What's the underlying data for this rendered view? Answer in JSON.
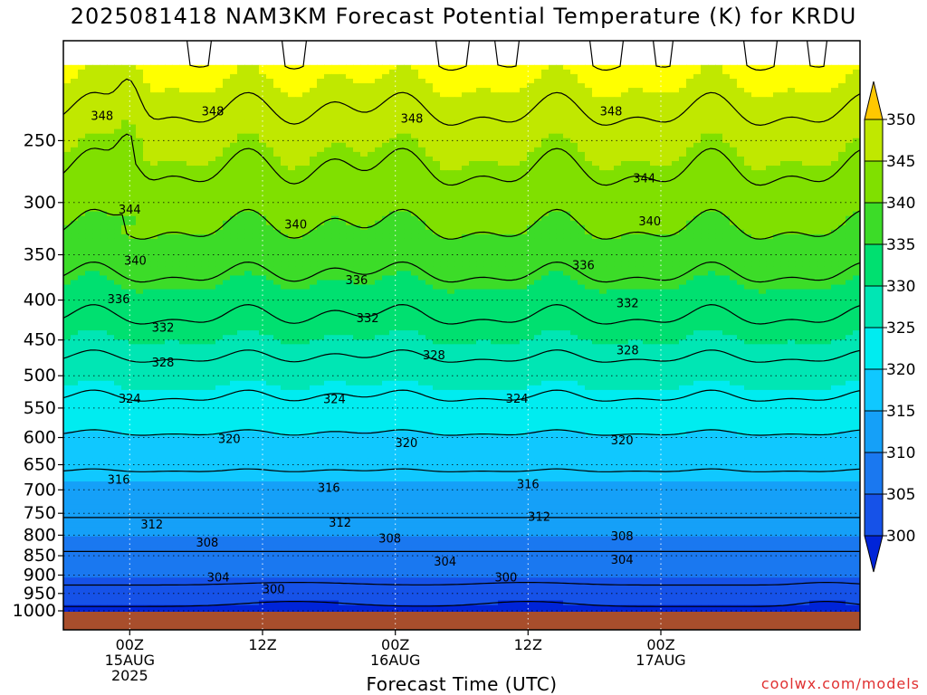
{
  "title": "2025081418 NAM3KM Forecast Potential Temperature (K) for KRDU",
  "credit": "coolwx.com/models",
  "chart_data": {
    "type": "heatmap",
    "title": "2025081418 NAM3KM Forecast Potential Temperature (K) for KRDU",
    "xlabel": "Forecast Time (UTC)",
    "ylabel": "",
    "y_axis": {
      "scale": "log",
      "reversed": true,
      "ylim": [
        1000,
        200
      ],
      "ticks": [
        250,
        300,
        350,
        400,
        450,
        500,
        550,
        600,
        650,
        700,
        750,
        800,
        850,
        900,
        950,
        1000
      ]
    },
    "x_axis": {
      "xlim": [
        -6,
        66
      ],
      "ticks": [
        {
          "value": 0,
          "label": [
            "00Z",
            "15AUG",
            "2025"
          ]
        },
        {
          "value": 12,
          "label": [
            "12Z"
          ]
        },
        {
          "value": 24,
          "label": [
            "00Z",
            "16AUG"
          ]
        },
        {
          "value": 36,
          "label": [
            "12Z"
          ]
        },
        {
          "value": 48,
          "label": [
            "00Z",
            "17AUG"
          ]
        }
      ]
    },
    "colorbar": {
      "levels": [
        300,
        305,
        310,
        315,
        320,
        325,
        330,
        335,
        340,
        345,
        350
      ],
      "tick_labels": [
        "300",
        "305",
        "310",
        "315",
        "320",
        "325",
        "330",
        "335",
        "340",
        "345",
        "350"
      ],
      "colors": [
        "#0024d8",
        "#1652e8",
        "#1a78f0",
        "#15a0f8",
        "#10c8ff",
        "#00ecf0",
        "#00e6b4",
        "#00e070",
        "#3cdc28",
        "#80e000",
        "#c0e800",
        "#ffff00",
        "#ffc800"
      ],
      "extend": "both"
    },
    "contour_labels": [
      {
        "value": 348,
        "text": "348",
        "x": -2.5,
        "p": 233
      },
      {
        "value": 348,
        "text": "348",
        "x": 7.5,
        "p": 230
      },
      {
        "value": 348,
        "text": "348",
        "x": 25.5,
        "p": 235
      },
      {
        "value": 348,
        "text": "348",
        "x": 43.5,
        "p": 230
      },
      {
        "value": 344,
        "text": "344",
        "x": 0,
        "p": 307
      },
      {
        "value": 344,
        "text": "344",
        "x": 46.5,
        "p": 280
      },
      {
        "value": 340,
        "text": "340",
        "x": 0.5,
        "p": 357
      },
      {
        "value": 340,
        "text": "340",
        "x": 15,
        "p": 321
      },
      {
        "value": 340,
        "text": "340",
        "x": 47,
        "p": 318
      },
      {
        "value": 336,
        "text": "336",
        "x": -1,
        "p": 400
      },
      {
        "value": 336,
        "text": "336",
        "x": 20.5,
        "p": 378
      },
      {
        "value": 336,
        "text": "336",
        "x": 41,
        "p": 362
      },
      {
        "value": 332,
        "text": "332",
        "x": 3,
        "p": 435
      },
      {
        "value": 332,
        "text": "332",
        "x": 21.5,
        "p": 423
      },
      {
        "value": 332,
        "text": "332",
        "x": 45,
        "p": 405
      },
      {
        "value": 328,
        "text": "328",
        "x": 3,
        "p": 482
      },
      {
        "value": 328,
        "text": "328",
        "x": 27.5,
        "p": 472
      },
      {
        "value": 328,
        "text": "328",
        "x": 45,
        "p": 465
      },
      {
        "value": 324,
        "text": "324",
        "x": 0,
        "p": 536
      },
      {
        "value": 324,
        "text": "324",
        "x": 18.5,
        "p": 537
      },
      {
        "value": 324,
        "text": "324",
        "x": 35,
        "p": 536
      },
      {
        "value": 320,
        "text": "320",
        "x": 9,
        "p": 604
      },
      {
        "value": 320,
        "text": "320",
        "x": 25,
        "p": 611
      },
      {
        "value": 320,
        "text": "320",
        "x": 44.5,
        "p": 606
      },
      {
        "value": 316,
        "text": "316",
        "x": -1,
        "p": 681
      },
      {
        "value": 316,
        "text": "316",
        "x": 18,
        "p": 698
      },
      {
        "value": 316,
        "text": "316",
        "x": 36,
        "p": 690
      },
      {
        "value": 312,
        "text": "312",
        "x": 2,
        "p": 777
      },
      {
        "value": 312,
        "text": "312",
        "x": 19,
        "p": 773
      },
      {
        "value": 312,
        "text": "312",
        "x": 37,
        "p": 760
      },
      {
        "value": 308,
        "text": "308",
        "x": 7,
        "p": 820
      },
      {
        "value": 308,
        "text": "308",
        "x": 23.5,
        "p": 810
      },
      {
        "value": 308,
        "text": "308",
        "x": 44.5,
        "p": 805
      },
      {
        "value": 304,
        "text": "304",
        "x": 8,
        "p": 909
      },
      {
        "value": 304,
        "text": "304",
        "x": 28.5,
        "p": 867
      },
      {
        "value": 304,
        "text": "304",
        "x": 44.5,
        "p": 862
      },
      {
        "value": 300,
        "text": "300",
        "x": 13,
        "p": 940
      },
      {
        "value": 300,
        "text": "300",
        "x": 34,
        "p": 909
      }
    ]
  }
}
